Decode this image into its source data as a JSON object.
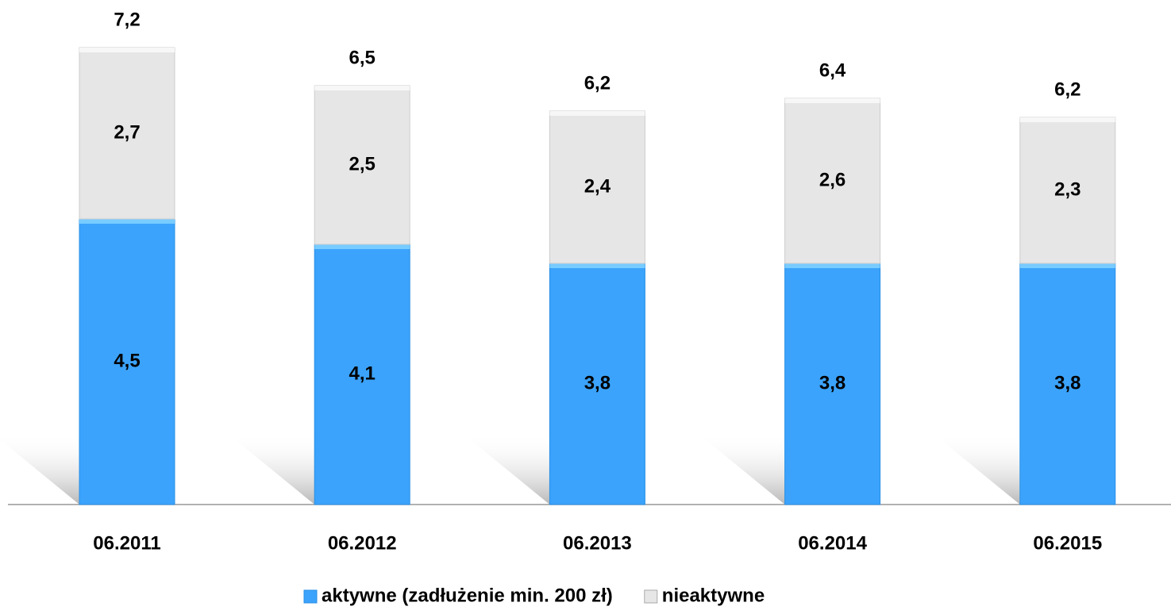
{
  "chart_data": {
    "type": "stacked_bar",
    "categories": [
      "06.2011",
      "06.2012",
      "06.2013",
      "06.2014",
      "06.2015"
    ],
    "series": [
      {
        "name": "aktywne (zadłużenie min. 200 zł)",
        "color": "#3ba3fb",
        "values": [
          4.5,
          4.1,
          3.8,
          3.8,
          3.8
        ],
        "value_labels": [
          "4,5",
          "4,1",
          "3,8",
          "3,8",
          "3,8"
        ]
      },
      {
        "name": "nieaktywne",
        "color": "#e6e6e6",
        "values": [
          2.7,
          2.5,
          2.4,
          2.6,
          2.3
        ],
        "value_labels": [
          "2,7",
          "2,5",
          "2,4",
          "2,6",
          "2,3"
        ]
      }
    ],
    "totals": [
      7.2,
      6.5,
      6.2,
      6.4,
      6.2
    ],
    "total_labels": [
      "7,2",
      "6,5",
      "6,2",
      "6,4",
      "6,2"
    ]
  }
}
